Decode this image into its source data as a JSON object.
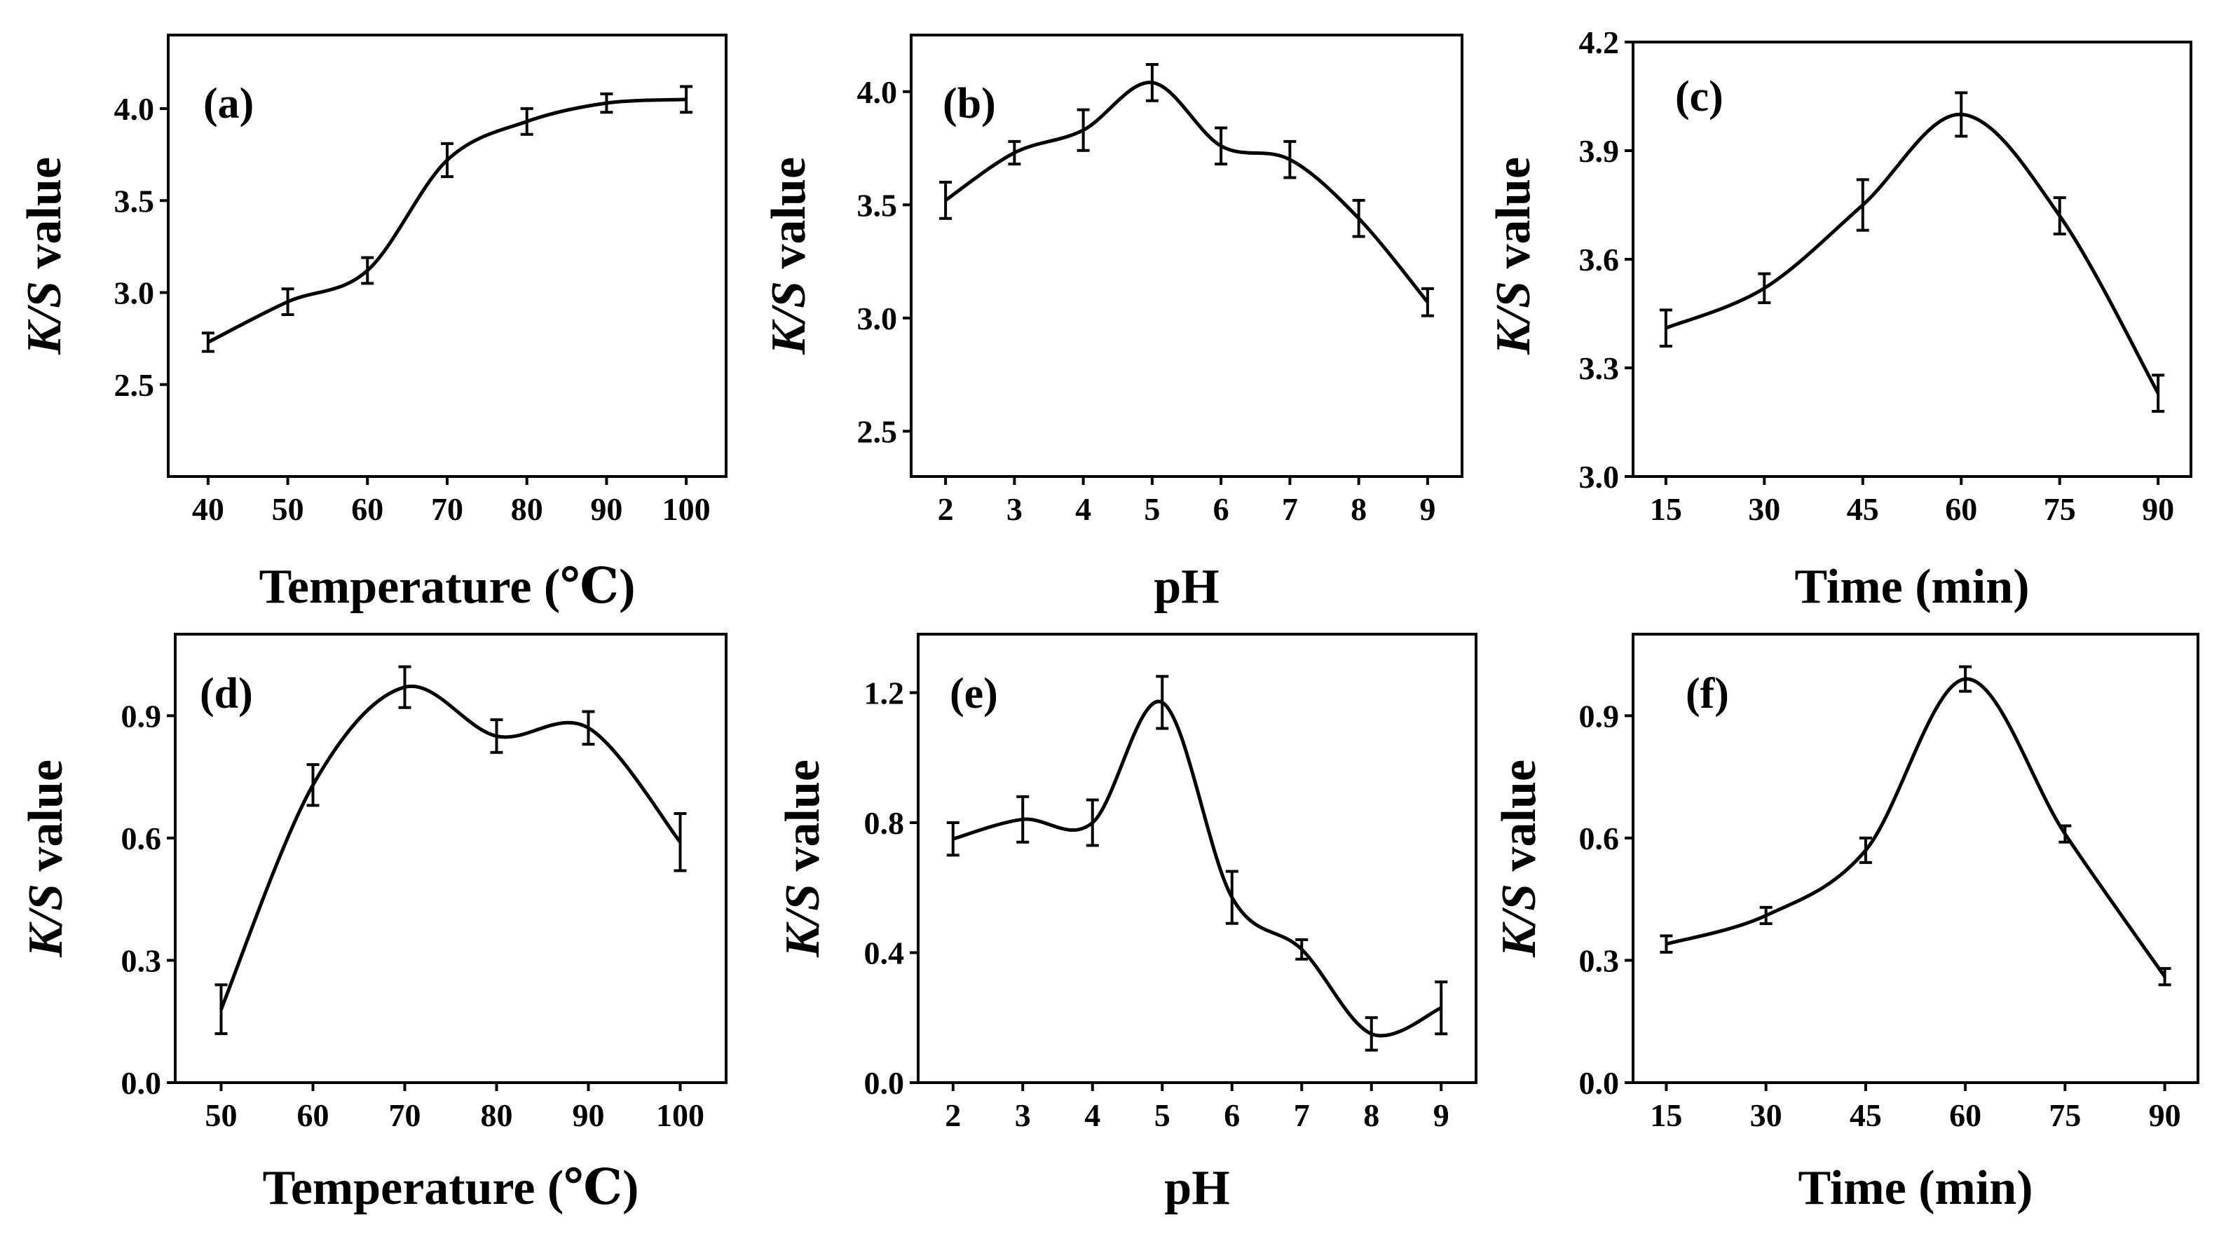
{
  "chart_data": [
    {
      "id": "a",
      "type": "line",
      "panel_label": "(a)",
      "xlabel": "Temperature (℃)",
      "ylabel": {
        "italic": "K/S",
        "rest": " value"
      },
      "x": [
        40,
        50,
        60,
        70,
        80,
        90,
        100
      ],
      "values": [
        2.73,
        2.95,
        3.12,
        3.72,
        3.93,
        4.03,
        4.05
      ],
      "errors": [
        0.05,
        0.07,
        0.07,
        0.09,
        0.07,
        0.05,
        0.07
      ],
      "xticks": [
        "40",
        "50",
        "60",
        "70",
        "80",
        "90",
        "100"
      ],
      "yticks": [
        "2.5",
        "3.0",
        "3.5",
        "4.0"
      ],
      "xlim": [
        35,
        105
      ],
      "ylim": [
        2.0,
        4.4
      ]
    },
    {
      "id": "b",
      "type": "line",
      "panel_label": "(b)",
      "xlabel": "pH",
      "ylabel": {
        "italic": "K/S",
        "rest": " value"
      },
      "x": [
        2,
        3,
        4,
        5,
        6,
        7,
        8,
        9
      ],
      "values": [
        3.52,
        3.73,
        3.83,
        4.04,
        3.76,
        3.7,
        3.44,
        3.07
      ],
      "errors": [
        0.08,
        0.05,
        0.09,
        0.08,
        0.08,
        0.08,
        0.08,
        0.06
      ],
      "xticks": [
        "2",
        "3",
        "4",
        "5",
        "6",
        "7",
        "8",
        "9"
      ],
      "yticks": [
        "2.5",
        "3.0",
        "3.5",
        "4.0"
      ],
      "xlim": [
        1.5,
        9.5
      ],
      "ylim": [
        2.3,
        4.25
      ]
    },
    {
      "id": "c",
      "type": "line",
      "panel_label": "(c)",
      "xlabel": "Time (min)",
      "ylabel": {
        "italic": "K/S",
        "rest": " value"
      },
      "x": [
        15,
        30,
        45,
        60,
        75,
        90
      ],
      "values": [
        3.41,
        3.52,
        3.75,
        4.0,
        3.72,
        3.23
      ],
      "errors": [
        0.05,
        0.04,
        0.07,
        0.06,
        0.05,
        0.05
      ],
      "xticks": [
        "15",
        "30",
        "45",
        "60",
        "75",
        "90"
      ],
      "yticks": [
        "3.0",
        "3.3",
        "3.6",
        "3.9",
        "4.2"
      ],
      "xlim": [
        10,
        95
      ],
      "ylim": [
        3.0,
        4.2
      ]
    },
    {
      "id": "d",
      "type": "line",
      "panel_label": "(d)",
      "xlabel": "Temperature (℃)",
      "ylabel": {
        "italic": "K/S",
        "rest": " value"
      },
      "x": [
        50,
        60,
        70,
        80,
        90,
        100
      ],
      "values": [
        0.18,
        0.73,
        0.97,
        0.85,
        0.87,
        0.59
      ],
      "errors": [
        0.06,
        0.05,
        0.05,
        0.04,
        0.04,
        0.07
      ],
      "xticks": [
        "50",
        "60",
        "70",
        "80",
        "90",
        "100"
      ],
      "yticks": [
        "0.0",
        "0.3",
        "0.6",
        "0.9"
      ],
      "xlim": [
        45,
        105
      ],
      "ylim": [
        0.0,
        1.1
      ]
    },
    {
      "id": "e",
      "type": "line",
      "panel_label": "(e)",
      "xlabel": "pH",
      "ylabel": {
        "italic": "K/S",
        "rest": " value"
      },
      "x": [
        2,
        3,
        4,
        5,
        6,
        7,
        8,
        9
      ],
      "values": [
        0.75,
        0.81,
        0.8,
        1.17,
        0.57,
        0.41,
        0.15,
        0.23
      ],
      "errors": [
        0.05,
        0.07,
        0.07,
        0.08,
        0.08,
        0.03,
        0.05,
        0.08
      ],
      "xticks": [
        "2",
        "3",
        "4",
        "5",
        "6",
        "7",
        "8",
        "9"
      ],
      "yticks": [
        "0.0",
        "0.4",
        "0.8",
        "1.2"
      ],
      "xlim": [
        1.5,
        9.5
      ],
      "ylim": [
        0.0,
        1.38
      ]
    },
    {
      "id": "f",
      "type": "line",
      "panel_label": "(f)",
      "xlabel": "Time (min)",
      "ylabel": {
        "italic": "K/S",
        "rest": " value"
      },
      "x": [
        15,
        30,
        45,
        60,
        75,
        90
      ],
      "values": [
        0.34,
        0.41,
        0.57,
        0.99,
        0.61,
        0.26
      ],
      "errors": [
        0.02,
        0.02,
        0.03,
        0.03,
        0.02,
        0.02
      ],
      "xticks": [
        "15",
        "30",
        "45",
        "60",
        "75",
        "90"
      ],
      "yticks": [
        "0.0",
        "0.3",
        "0.6",
        "0.9"
      ],
      "xlim": [
        10,
        95
      ],
      "ylim": [
        0.0,
        1.1
      ]
    }
  ]
}
